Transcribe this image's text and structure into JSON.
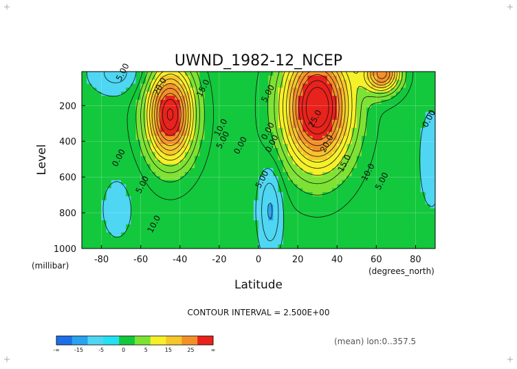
{
  "chart_data": {
    "type": "heatmap",
    "title": "UWND_1982-12_NCEP",
    "xlabel": "Latitude",
    "ylabel": "Level",
    "x_unit": "(degrees_north)",
    "y_unit": "(millibar)",
    "xlim": [
      -90,
      90
    ],
    "ylim": [
      1000,
      10
    ],
    "x_ticks": [
      -80,
      -60,
      -40,
      -20,
      0,
      20,
      40,
      60,
      80
    ],
    "y_ticks": [
      200,
      400,
      600,
      800,
      1000
    ],
    "contour_interval_text": "CONTOUR INTERVAL = 2.500E+00",
    "contour_interval": 2.5,
    "info_text": "(mean) lon:0..357.5",
    "grid": true,
    "colorbar": {
      "position": "bottom-left",
      "colors": [
        "#1e6fe6",
        "#2aa2ee",
        "#4ed6f2",
        "#25e0f0",
        "#13c83c",
        "#7de234",
        "#f5f029",
        "#f7c52c",
        "#f39128",
        "#e8221c"
      ],
      "tick_labels": [
        "-∞",
        "-15",
        "-5",
        "0",
        "5",
        "15",
        "25",
        "∞"
      ]
    },
    "contour_labels": [
      {
        "text": "5.00",
        "lat": -68,
        "lev": 20
      },
      {
        "text": "20.0",
        "lat": -49,
        "lev": 100
      },
      {
        "text": "15.0",
        "lat": -27,
        "lev": 110
      },
      {
        "text": "10.0",
        "lat": -18,
        "lev": 330
      },
      {
        "text": "5.00",
        "lat": -17,
        "lev": 400
      },
      {
        "text": "0.00",
        "lat": -8,
        "lev": 430
      },
      {
        "text": "0.00",
        "lat": -70,
        "lev": 500
      },
      {
        "text": "5.00",
        "lat": -58,
        "lev": 650
      },
      {
        "text": "10.0",
        "lat": -52,
        "lev": 870
      },
      {
        "text": "5.00",
        "lat": 6,
        "lev": 140
      },
      {
        "text": "0.00",
        "lat": 6,
        "lev": 350
      },
      {
        "text": "0.00",
        "lat": 8,
        "lev": 420
      },
      {
        "text": "5.00",
        "lat": 3,
        "lev": 620
      },
      {
        "text": "25.0",
        "lat": 30,
        "lev": 280
      },
      {
        "text": "20.0",
        "lat": 36,
        "lev": 420
      },
      {
        "text": "15.0",
        "lat": 45,
        "lev": 530
      },
      {
        "text": "10.0",
        "lat": 57,
        "lev": 580
      },
      {
        "text": "5.00",
        "lat": 64,
        "lev": 630
      },
      {
        "text": "0.00",
        "lat": 88,
        "lev": 280
      }
    ]
  }
}
